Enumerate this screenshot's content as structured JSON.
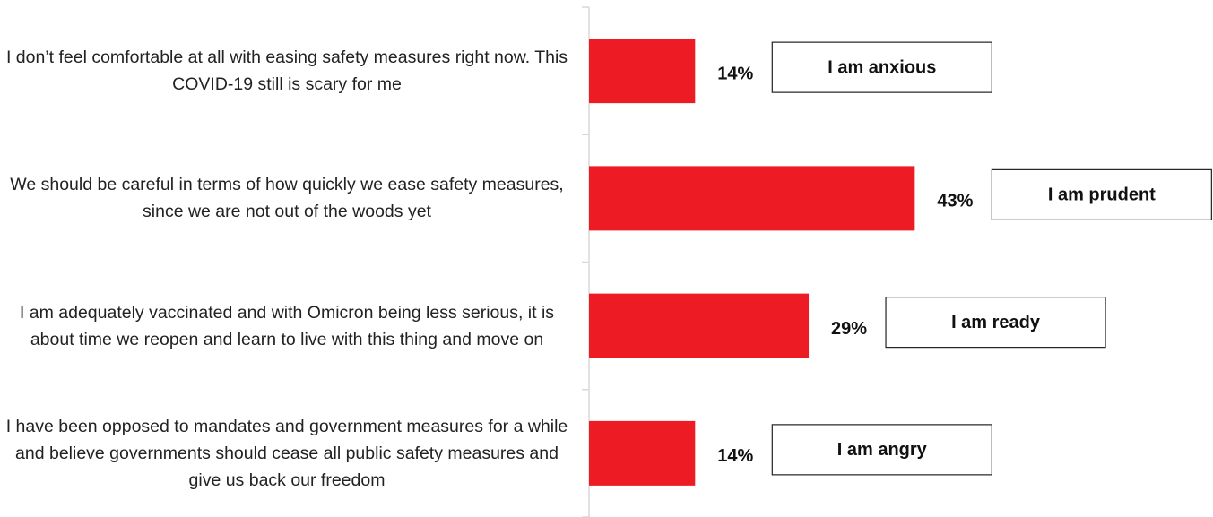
{
  "chart_data": {
    "type": "bar",
    "orientation": "horizontal",
    "categories": [
      "I don’t feel comfortable at all with easing safety measures right now. This COVID-19 still is scary for me",
      "We should be careful in terms of how quickly we ease safety measures, since we are not out of the woods yet",
      "I am adequately vaccinated and with Omicron being less serious, it is about time we reopen and learn to live with this thing and move on",
      "I have been opposed to mandates and government measures for a while and believe governments should cease all public safety measures and give us back our freedom"
    ],
    "values": [
      14,
      43,
      29,
      14
    ],
    "value_labels": [
      "14%",
      "43%",
      "29%",
      "14%"
    ],
    "annotations": [
      "I am anxious",
      "I am prudent",
      "I am ready",
      "I am angry"
    ],
    "color": "#ed1c24"
  }
}
